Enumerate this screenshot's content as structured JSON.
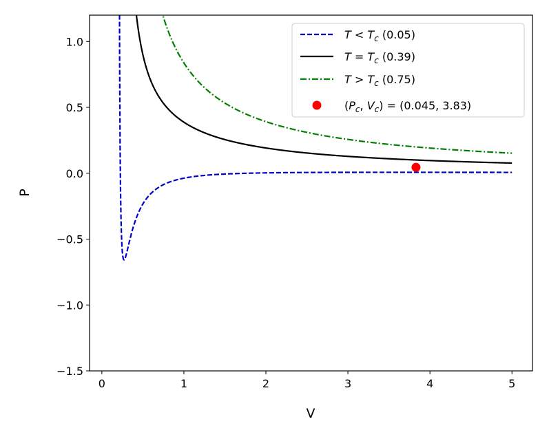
{
  "chart_data": {
    "type": "line",
    "xlabel": "V",
    "ylabel": "P",
    "xlim": [
      -0.15,
      5.25
    ],
    "ylim": [
      -1.5,
      1.2
    ],
    "grid": false,
    "legend_position": "top-right",
    "x_ticks": [
      0,
      1,
      2,
      3,
      4,
      5
    ],
    "x_tick_labels": [
      "0",
      "1",
      "2",
      "3",
      "4",
      "5"
    ],
    "y_ticks": [
      -1.5,
      -1.0,
      -0.5,
      0.0,
      0.5,
      1.0
    ],
    "y_tick_labels": [
      "−1.5",
      "−1.0",
      "−0.5",
      "0.0",
      "0.5",
      "1.0"
    ],
    "model": {
      "a": 0.1,
      "b": 0.2,
      "vmin": 0.0,
      "vmax": 5.0
    },
    "series": [
      {
        "legend": {
          "prefix": "T",
          "op": " < ",
          "sub_base": "T",
          "sub": "c",
          "suffix": " (0.05)"
        },
        "T": 0.05,
        "color": "#0000cc",
        "style": "dashed"
      },
      {
        "legend": {
          "prefix": "T",
          "op": " = ",
          "sub_base": "T",
          "sub": "c",
          "suffix": " (0.39)"
        },
        "T": 0.39,
        "color": "#000000",
        "style": "solid"
      },
      {
        "legend": {
          "prefix": "T",
          "op": " > ",
          "sub_base": "T",
          "sub": "c",
          "suffix": " (0.75)"
        },
        "T": 0.75,
        "color": "#007f00",
        "style": "dashdot"
      }
    ],
    "points": [
      {
        "x": 3.83,
        "y": 0.045,
        "color": "#ff0000",
        "legend": {
          "open": "(",
          "p": "P",
          "p_sub": "c",
          "comma": ", ",
          "v": "V",
          "v_sub": "c",
          "close": ") = (0.045, 3.83)"
        }
      }
    ]
  }
}
